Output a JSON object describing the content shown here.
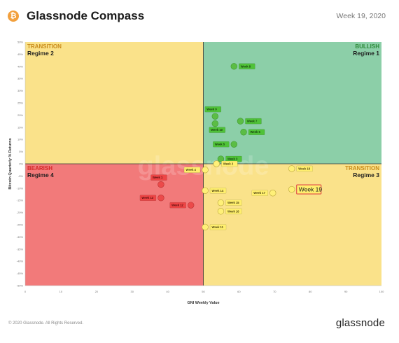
{
  "header": {
    "title": "Glassnode Compass",
    "week": "Week 19, 2020",
    "logo_icon": "bitcoin-icon",
    "logo_glyph": "₿",
    "logo_color": "#f2a03d"
  },
  "footer": {
    "copyright": "© 2020 Glassnode. All Rights Reserved.",
    "brand": "glassnode"
  },
  "chart_data": {
    "type": "scatter",
    "xlabel": "GNI Weekly Value",
    "ylabel": "Bitcoin Quarterly % Returns",
    "xlim": [
      0,
      100
    ],
    "ylim": [
      -50,
      50
    ],
    "xticks": [
      0,
      10,
      20,
      30,
      40,
      50,
      60,
      70,
      80,
      90,
      100
    ],
    "yticks": [
      50,
      45,
      40,
      35,
      30,
      25,
      20,
      15,
      10,
      5,
      0,
      -5,
      -10,
      -15,
      -20,
      -25,
      -30,
      -35,
      -40,
      -45,
      -50
    ],
    "grid": false,
    "watermark": "glassnode",
    "colors": {
      "bullish": "#8ccfa8",
      "transition": "#fae28a",
      "bearish": "#f27a7a",
      "green_point": "#5bbd45",
      "yellow_point": "#fff078",
      "red_point": "#ec4a4a",
      "bullish_text": "#2e8b3a",
      "transition_text": "#c98b1a",
      "bearish_text": "#d42828",
      "highlight_border": "#e04646"
    },
    "quadrants": [
      {
        "name": "TRANSITION",
        "regime": "Regime 2",
        "position": "top-left",
        "color_key": "transition"
      },
      {
        "name": "BULLISH",
        "regime": "Regime 1",
        "position": "top-right",
        "color_key": "bullish"
      },
      {
        "name": "BEARISH",
        "regime": "Regime 4",
        "position": "bottom-left",
        "color_key": "bearish"
      },
      {
        "name": "TRANSITION",
        "regime": "Regime 3",
        "position": "bottom-right",
        "color_key": "transition"
      }
    ],
    "points": [
      {
        "label": "Week 8",
        "x": 58.6,
        "y": 40,
        "color": "green",
        "label_side": "right"
      },
      {
        "label": "Week 9",
        "x": 53.3,
        "y": 19.5,
        "color": "green",
        "label_side": "above"
      },
      {
        "label": "Week 7",
        "x": 60.4,
        "y": 17.5,
        "color": "green",
        "label_side": "right"
      },
      {
        "label": "Week 10",
        "x": 53.3,
        "y": 16.5,
        "color": "green",
        "label_side": "below"
      },
      {
        "label": "Week 6",
        "x": 61.3,
        "y": 13,
        "color": "green",
        "label_side": "right"
      },
      {
        "label": "Week 5",
        "x": 58.6,
        "y": 8,
        "color": "green",
        "label_side": "left"
      },
      {
        "label": "Week 3",
        "x": 54.9,
        "y": 2,
        "color": "green",
        "label_side": "right"
      },
      {
        "label": "Week 4",
        "x": 50.5,
        "y": -2.5,
        "color": "yellow",
        "label_side": "left"
      },
      {
        "label": "Week 2",
        "x": 53.7,
        "y": 0,
        "color": "yellow",
        "label_side": "right"
      },
      {
        "label": "Week 18",
        "x": 74.8,
        "y": -2,
        "color": "yellow",
        "label_side": "right"
      },
      {
        "label": "Week 14",
        "x": 50.5,
        "y": -11,
        "color": "yellow",
        "label_side": "right"
      },
      {
        "label": "Week 17",
        "x": 69.5,
        "y": -12,
        "color": "yellow",
        "label_side": "left"
      },
      {
        "label": "Week 19",
        "x": 74.8,
        "y": -10.5,
        "color": "yellow",
        "label_side": "right",
        "highlight": true
      },
      {
        "label": "Week 15",
        "x": 54.9,
        "y": -16,
        "color": "yellow",
        "label_side": "right"
      },
      {
        "label": "Week 16",
        "x": 54.9,
        "y": -19.5,
        "color": "yellow",
        "label_side": "right"
      },
      {
        "label": "Week 11",
        "x": 50.5,
        "y": -26,
        "color": "yellow",
        "label_side": "right"
      },
      {
        "label": "Week 1",
        "x": 38.1,
        "y": -8.5,
        "color": "red",
        "label_side": "above"
      },
      {
        "label": "Week 13",
        "x": 38.1,
        "y": -14,
        "color": "red",
        "label_side": "left"
      },
      {
        "label": "Week 12",
        "x": 46.5,
        "y": -17,
        "color": "red",
        "label_side": "left"
      }
    ]
  }
}
